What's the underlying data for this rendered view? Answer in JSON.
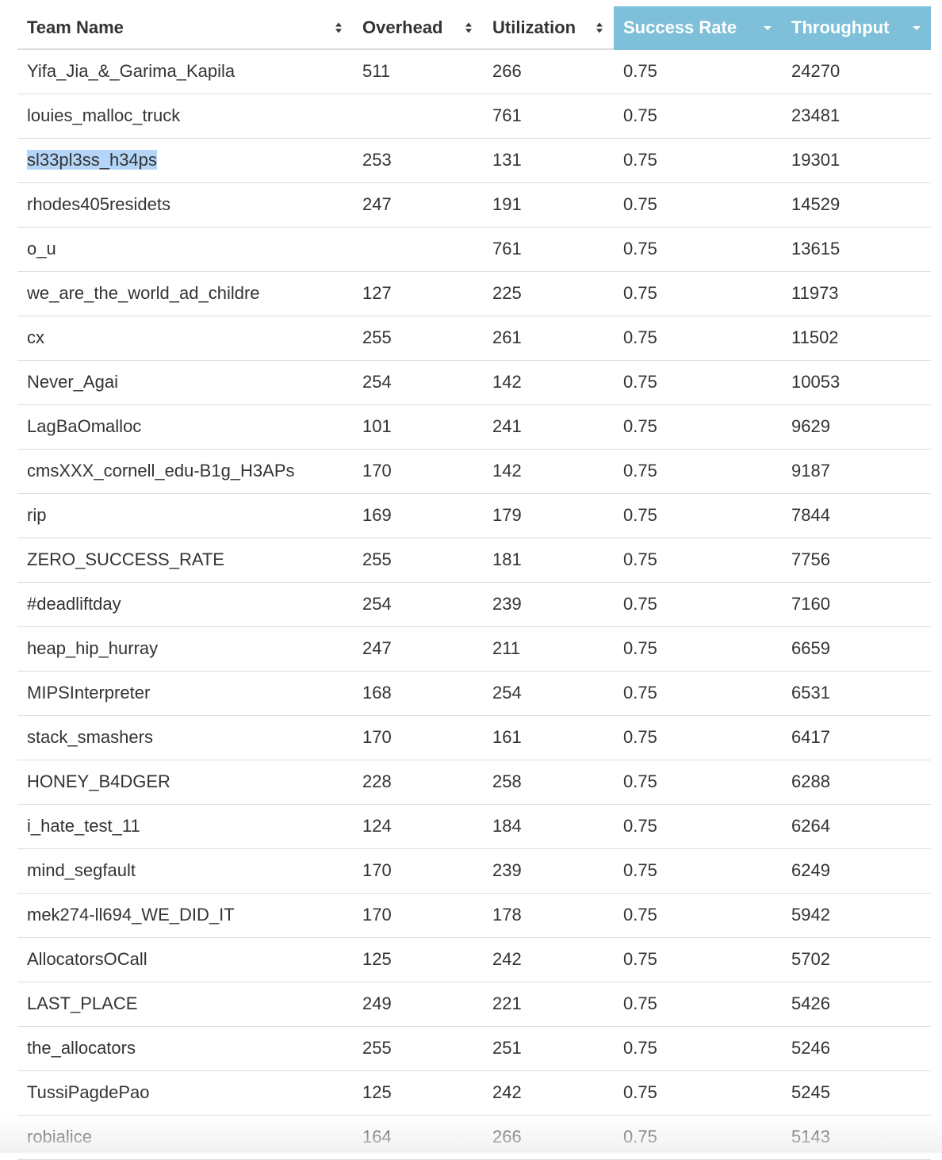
{
  "colors": {
    "sorted_header_bg": "#7ec0d9",
    "sorted_header_text": "#ffffff",
    "text": "#333333",
    "row_divider": "#dddddd",
    "selection_highlight": "#b4d5f7"
  },
  "table": {
    "columns": [
      {
        "label": "Team Name",
        "sort_icon": "sort-both-icon",
        "sorted": false
      },
      {
        "label": "Overhead",
        "sort_icon": "sort-both-icon",
        "sorted": false
      },
      {
        "label": "Utilization",
        "sort_icon": "sort-both-icon",
        "sorted": false
      },
      {
        "label": "Success Rate",
        "sort_icon": "sort-desc-icon",
        "sorted": true
      },
      {
        "label": "Throughput",
        "sort_icon": "sort-desc-icon",
        "sorted": true
      }
    ],
    "rows": [
      {
        "team": "Yifa_Jia_&_Garima_Kapila",
        "overhead": "511",
        "utilization": "266",
        "success_rate": "0.75",
        "throughput": "24270"
      },
      {
        "team": "louies_malloc_truck",
        "overhead": "",
        "utilization": "761",
        "success_rate": "0.75",
        "throughput": "23481"
      },
      {
        "team": "sl33pl3ss_h34ps",
        "overhead": "253",
        "utilization": "131",
        "success_rate": "0.75",
        "throughput": "19301",
        "selected": true
      },
      {
        "team": "rhodes405residets",
        "overhead": "247",
        "utilization": "191",
        "success_rate": "0.75",
        "throughput": "14529"
      },
      {
        "team": "o_u",
        "overhead": "",
        "utilization": "761",
        "success_rate": "0.75",
        "throughput": "13615"
      },
      {
        "team": "we_are_the_world_ad_childre",
        "overhead": "127",
        "utilization": "225",
        "success_rate": "0.75",
        "throughput": "11973"
      },
      {
        "team": "cx",
        "overhead": "255",
        "utilization": "261",
        "success_rate": "0.75",
        "throughput": "11502"
      },
      {
        "team": "Never_Agai",
        "overhead": "254",
        "utilization": "142",
        "success_rate": "0.75",
        "throughput": "10053"
      },
      {
        "team": "LagBaOmalloc",
        "overhead": "101",
        "utilization": "241",
        "success_rate": "0.75",
        "throughput": "9629"
      },
      {
        "team": "cmsXXX_cornell_edu-B1g_H3APs",
        "overhead": "170",
        "utilization": "142",
        "success_rate": "0.75",
        "throughput": "9187"
      },
      {
        "team": "rip",
        "overhead": "169",
        "utilization": "179",
        "success_rate": "0.75",
        "throughput": "7844"
      },
      {
        "team": "ZERO_SUCCESS_RATE",
        "overhead": "255",
        "utilization": "181",
        "success_rate": "0.75",
        "throughput": "7756"
      },
      {
        "team": "#deadliftday",
        "overhead": "254",
        "utilization": "239",
        "success_rate": "0.75",
        "throughput": "7160"
      },
      {
        "team": "heap_hip_hurray",
        "overhead": "247",
        "utilization": "211",
        "success_rate": "0.75",
        "throughput": "6659"
      },
      {
        "team": "MIPSInterpreter",
        "overhead": "168",
        "utilization": "254",
        "success_rate": "0.75",
        "throughput": "6531"
      },
      {
        "team": "stack_smashers",
        "overhead": "170",
        "utilization": "161",
        "success_rate": "0.75",
        "throughput": "6417"
      },
      {
        "team": "HONEY_B4DGER",
        "overhead": "228",
        "utilization": "258",
        "success_rate": "0.75",
        "throughput": "6288"
      },
      {
        "team": "i_hate_test_11",
        "overhead": "124",
        "utilization": "184",
        "success_rate": "0.75",
        "throughput": "6264"
      },
      {
        "team": "mind_segfault",
        "overhead": "170",
        "utilization": "239",
        "success_rate": "0.75",
        "throughput": "6249"
      },
      {
        "team": "mek274-ll694_WE_DID_IT",
        "overhead": "170",
        "utilization": "178",
        "success_rate": "0.75",
        "throughput": "5942"
      },
      {
        "team": "AllocatorsOCall",
        "overhead": "125",
        "utilization": "242",
        "success_rate": "0.75",
        "throughput": "5702"
      },
      {
        "team": "LAST_PLACE",
        "overhead": "249",
        "utilization": "221",
        "success_rate": "0.75",
        "throughput": "5426"
      },
      {
        "team": "the_allocators",
        "overhead": "255",
        "utilization": "251",
        "success_rate": "0.75",
        "throughput": "5246"
      },
      {
        "team": "TussiPagdePao",
        "overhead": "125",
        "utilization": "242",
        "success_rate": "0.75",
        "throughput": "5245"
      },
      {
        "team": "robialice",
        "overhead": "164",
        "utilization": "266",
        "success_rate": "0.75",
        "throughput": "5143"
      }
    ]
  }
}
